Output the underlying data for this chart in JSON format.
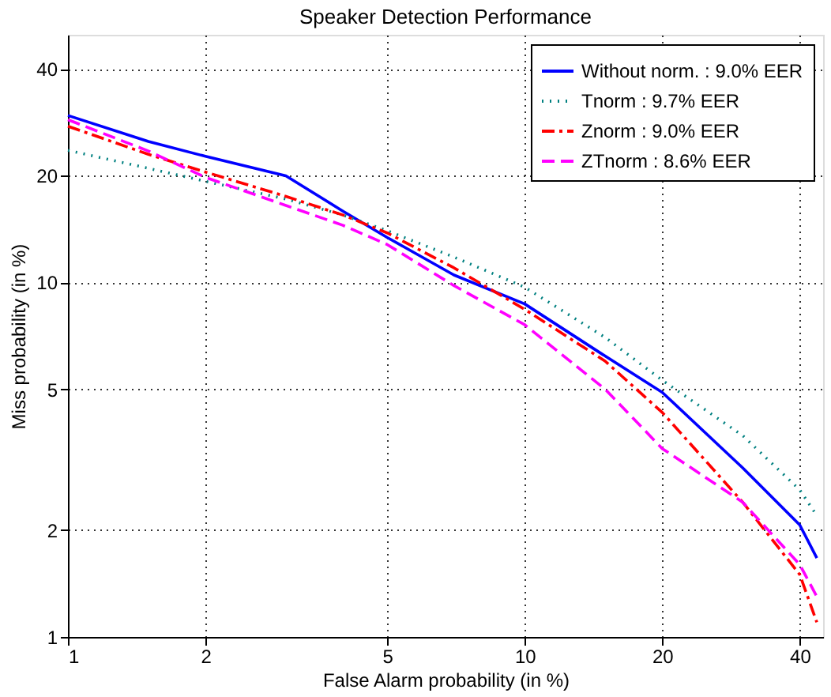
{
  "chart_data": {
    "type": "line",
    "title": "Speaker Detection Performance",
    "xlabel": "False Alarm probability (in %)",
    "ylabel": "Miss probability (in %)",
    "x": [
      1,
      1.5,
      2,
      3,
      4,
      5,
      7,
      10,
      15,
      20,
      30,
      40,
      43.6
    ],
    "series": [
      {
        "name": "Without norm. : 9.0% EER",
        "color": "#0000ff",
        "line_style": "solid",
        "values": [
          29.6,
          25,
          22.7,
          20,
          15.9,
          13.4,
          10.5,
          8.7,
          6.2,
          4.9,
          3.0,
          2.07,
          1.67
        ]
      },
      {
        "name": "Tnorm : 9.7% EER",
        "color": "#008080",
        "line_style": "dotted",
        "values": [
          23.6,
          21,
          19.3,
          17.2,
          15.5,
          14,
          11.8,
          9.7,
          7,
          5.3,
          3.7,
          2.6,
          2.2
        ]
      },
      {
        "name": "Znorm : 9.0% EER",
        "color": "#ff0000",
        "line_style": "dashdot",
        "values": [
          27.6,
          23,
          20.5,
          17.5,
          15.5,
          13.8,
          11,
          8.4,
          6,
          4.3,
          2.4,
          1.5,
          1.1
        ]
      },
      {
        "name": "ZTnorm : 8.6% EER",
        "color": "#ff00ff",
        "line_style": "dashed",
        "values": [
          28.8,
          23.5,
          19.8,
          16.5,
          14.5,
          12.8,
          9.8,
          7.6,
          5,
          3.4,
          2.4,
          1.6,
          1.3
        ]
      }
    ],
    "log": "xy",
    "xlim": [
      1,
      45
    ],
    "ylim": [
      1,
      50
    ],
    "xticks": [
      1,
      2,
      5,
      10,
      20,
      40
    ],
    "yticks": [
      1,
      2,
      5,
      10,
      20,
      40
    ],
    "grid": true,
    "legend": "top right",
    "marker": "none"
  }
}
